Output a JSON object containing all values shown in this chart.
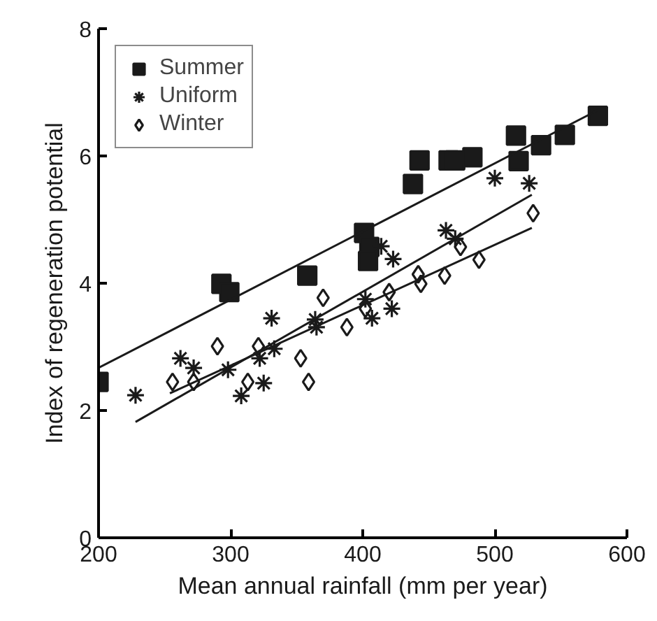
{
  "chart_data": {
    "type": "scatter",
    "xlabel": "Mean annual rainfall (mm per year)",
    "ylabel": "Index of regeneration potential",
    "xlim": [
      200,
      600
    ],
    "xticks": [
      200,
      300,
      400,
      500,
      600
    ],
    "ylim": [
      0,
      8
    ],
    "yticks": [
      0,
      2,
      4,
      6,
      8
    ],
    "grid": false,
    "legend": "top left",
    "series": [
      {
        "name": "Summer",
        "color": "#1a1a1a",
        "marker": "square",
        "x": [
          200,
          293,
          299,
          358,
          401,
          405,
          404,
          438,
          443,
          465,
          470,
          483,
          516,
          518,
          535,
          553,
          578
        ],
        "values": [
          2.45,
          3.99,
          3.86,
          4.12,
          4.79,
          4.57,
          4.35,
          5.56,
          5.93,
          5.93,
          5.93,
          5.98,
          6.32,
          5.92,
          6.17,
          6.33,
          6.63
        ]
      },
      {
        "name": "Uniform",
        "color": "#1a1a1a",
        "marker": "cross",
        "x": [
          228,
          262,
          272,
          298,
          308,
          322,
          325,
          331,
          333,
          364,
          365,
          402,
          407,
          414,
          423,
          422,
          463,
          470,
          500,
          526
        ],
        "values": [
          2.24,
          2.82,
          2.67,
          2.64,
          2.23,
          2.82,
          2.43,
          3.45,
          2.97,
          3.43,
          3.31,
          3.75,
          3.45,
          4.58,
          4.38,
          3.6,
          4.83,
          4.7,
          5.65,
          5.57
        ]
      },
      {
        "name": "Winter",
        "color": "#1a1a1a",
        "marker": "diamond",
        "x": [
          256,
          272,
          290,
          313,
          321,
          353,
          359,
          370,
          388,
          402,
          420,
          442,
          444,
          462,
          474,
          488,
          529
        ],
        "values": [
          2.45,
          2.45,
          3.01,
          2.45,
          3.01,
          2.82,
          2.45,
          3.77,
          3.31,
          3.6,
          3.86,
          4.14,
          3.99,
          4.12,
          4.57,
          4.37,
          5.1
        ]
      },
      {
        "type": "line",
        "color": "#1a1a1a",
        "marker": "none",
        "x": [
          200,
          578
        ],
        "values": [
          2.67,
          6.72
        ]
      },
      {
        "type": "line",
        "color": "#1a1a1a",
        "marker": "none",
        "x": [
          228,
          528
        ],
        "values": [
          1.82,
          5.39
        ]
      },
      {
        "type": "line",
        "color": "#1a1a1a",
        "marker": "none",
        "x": [
          254,
          528
        ],
        "values": [
          2.27,
          4.87
        ]
      }
    ]
  }
}
